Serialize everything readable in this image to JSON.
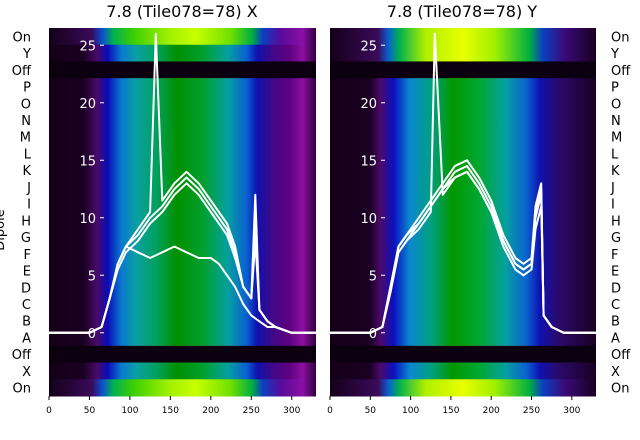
{
  "chart_data": [
    {
      "type": "heatmap",
      "title": "7.8 (Tile078=78) X",
      "ylabel": "Dipole",
      "dipole_labels": [
        "On",
        "Y",
        "Off",
        "P",
        "O",
        "N",
        "M",
        "L",
        "K",
        "J",
        "I",
        "H",
        "G",
        "F",
        "E",
        "D",
        "C",
        "B",
        "A",
        "Off",
        "X",
        "On"
      ],
      "xticks": [
        "0",
        "50",
        "100",
        "150",
        "200",
        "250",
        "300"
      ],
      "yticks": [
        "0",
        "5",
        "10",
        "15",
        "20",
        "25"
      ],
      "xlim": [
        0,
        330
      ],
      "ylim": [
        -5.5,
        26.5
      ],
      "colormap": "nipy_spectral",
      "series_color": "#ffffff",
      "series": [
        {
          "x": [
            0,
            50,
            65,
            75,
            85,
            95,
            110,
            125,
            140,
            155,
            170,
            185,
            200,
            210,
            220,
            230,
            240,
            250,
            255,
            260,
            270,
            280,
            300,
            330
          ],
          "values": [
            0,
            0,
            0.5,
            3,
            6,
            7.5,
            8.5,
            10,
            11,
            12.5,
            13.5,
            12.5,
            11,
            10,
            9,
            7,
            4,
            3,
            8,
            2,
            1,
            0.5,
            0,
            0
          ]
        },
        {
          "x": [
            0,
            50,
            65,
            75,
            85,
            95,
            110,
            125,
            140,
            155,
            170,
            185,
            200,
            210,
            220,
            230,
            240,
            250,
            255,
            260,
            270,
            280,
            300,
            330
          ],
          "values": [
            0,
            0,
            0.5,
            3,
            5.5,
            7,
            8,
            9.5,
            10.5,
            12,
            13,
            12,
            10.5,
            9.5,
            8.5,
            6.5,
            4,
            3,
            10,
            2,
            1,
            0.5,
            0,
            0
          ]
        },
        {
          "x": [
            0,
            50,
            65,
            75,
            85,
            95,
            110,
            125,
            132,
            140,
            155,
            170,
            185,
            200,
            210,
            220,
            230,
            240,
            250,
            255,
            260,
            270,
            280,
            300,
            330
          ],
          "values": [
            0,
            0,
            0.5,
            3,
            6,
            7.5,
            9,
            10.5,
            26,
            11.5,
            13,
            14,
            13,
            11.5,
            10.5,
            9.5,
            7.5,
            4,
            3,
            12,
            2,
            1,
            0.5,
            0,
            0
          ]
        },
        {
          "x": [
            0,
            50,
            65,
            75,
            85,
            95,
            110,
            125,
            140,
            155,
            170,
            185,
            200,
            210,
            220,
            230,
            240,
            250,
            260,
            270,
            280,
            300,
            330
          ],
          "values": [
            0,
            0,
            0.5,
            3,
            6,
            7.5,
            7,
            6.5,
            7,
            7.5,
            7,
            6.5,
            6.5,
            6,
            5,
            4,
            2.5,
            1.5,
            1,
            0.5,
            0.5,
            0,
            0
          ]
        }
      ]
    },
    {
      "type": "heatmap",
      "title": "7.8 (Tile078=78) Y",
      "ylabel": "",
      "dipole_labels": [
        "On",
        "Y",
        "Off",
        "P",
        "O",
        "N",
        "M",
        "L",
        "K",
        "J",
        "I",
        "H",
        "G",
        "F",
        "E",
        "D",
        "C",
        "B",
        "A",
        "Off",
        "X",
        "On"
      ],
      "xticks": [
        "0",
        "50",
        "100",
        "150",
        "200",
        "250",
        "300"
      ],
      "yticks": [
        "0",
        "5",
        "10",
        "15",
        "20",
        "25"
      ],
      "xlim": [
        0,
        330
      ],
      "ylim": [
        -5.5,
        26.5
      ],
      "colormap": "nipy_spectral",
      "series_color": "#ffffff",
      "series": [
        {
          "x": [
            0,
            50,
            65,
            75,
            85,
            95,
            110,
            125,
            140,
            155,
            170,
            185,
            200,
            215,
            230,
            240,
            250,
            255,
            262,
            265,
            275,
            290,
            330
          ],
          "values": [
            0,
            0,
            0.5,
            4,
            7.5,
            8.5,
            9.5,
            11,
            12.5,
            14,
            14.5,
            13,
            11,
            8,
            6,
            5.5,
            6,
            10,
            12,
            1.5,
            0.5,
            0,
            0
          ]
        },
        {
          "x": [
            0,
            50,
            65,
            75,
            85,
            95,
            110,
            125,
            130,
            140,
            155,
            170,
            185,
            200,
            215,
            230,
            240,
            250,
            255,
            262,
            265,
            275,
            290,
            330
          ],
          "values": [
            0,
            0,
            0.5,
            4,
            7,
            8,
            9,
            10.5,
            26,
            12,
            13.5,
            14,
            12.5,
            10.5,
            7.5,
            5.5,
            5,
            5.5,
            9,
            11,
            1.5,
            0.5,
            0,
            0
          ]
        },
        {
          "x": [
            0,
            50,
            65,
            75,
            85,
            95,
            110,
            125,
            140,
            155,
            170,
            185,
            200,
            215,
            230,
            240,
            250,
            255,
            262,
            265,
            275,
            290,
            330
          ],
          "values": [
            0,
            0,
            0.5,
            4,
            7.5,
            8.5,
            10,
            11.5,
            13,
            14.5,
            15,
            13.5,
            11.5,
            8.5,
            6.5,
            6,
            6.5,
            11,
            13,
            1.5,
            0.5,
            0,
            0
          ]
        },
        {
          "x": [
            0,
            50,
            65,
            75,
            85,
            95,
            110,
            125,
            140,
            155,
            170,
            185,
            200,
            215,
            230,
            240,
            250,
            255,
            262,
            265,
            275,
            290,
            330
          ],
          "values": [
            0,
            0,
            0.5,
            3.5,
            7,
            8,
            9.5,
            11,
            12.5,
            13.5,
            14,
            12.5,
            10.5,
            8,
            6,
            5.5,
            6,
            10.5,
            12.5,
            1.5,
            0.5,
            0,
            0
          ]
        }
      ]
    }
  ]
}
